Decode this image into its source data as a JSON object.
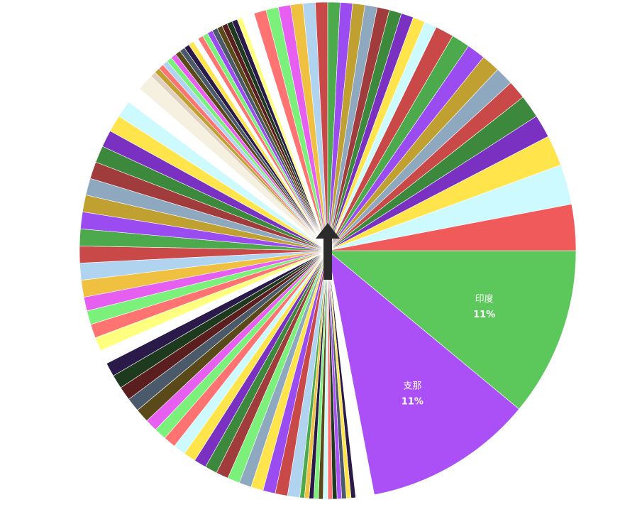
{
  "chart_data": {
    "type": "pie",
    "categories": [
      "印度",
      "支那",
      null,
      null,
      null,
      null,
      null,
      null,
      null,
      null,
      null,
      null,
      null,
      null,
      null,
      null,
      null,
      null,
      null,
      null,
      null,
      null,
      null,
      null,
      null,
      null,
      null,
      null,
      null,
      null,
      null,
      null,
      null,
      null,
      null,
      null,
      null,
      null,
      null,
      null,
      null,
      null,
      null,
      null,
      null,
      null,
      null,
      null,
      null,
      null,
      null,
      null,
      null,
      null,
      null,
      null,
      null,
      null,
      null,
      null,
      null,
      null,
      null,
      null,
      null,
      null,
      null,
      null,
      null,
      null,
      null,
      null,
      null,
      null,
      null,
      null,
      null,
      null,
      null,
      null,
      null,
      null,
      null,
      null,
      null,
      null,
      null,
      null,
      null,
      null,
      null,
      null,
      null,
      null,
      null,
      null,
      null,
      null,
      null,
      null
    ],
    "values": [
      11,
      11,
      1.2,
      0.3,
      0.3,
      0.3,
      0.3,
      0.3,
      0.3,
      0.3,
      0.3,
      0.3,
      0.3,
      0.3,
      0.3,
      0.8,
      0.8,
      0.8,
      0.8,
      0.8,
      0.8,
      0.8,
      0.8,
      0.8,
      0.8,
      0.8,
      0.8,
      0.8,
      0.8,
      0.9,
      0.9,
      0.9,
      0.9,
      0.9,
      0.9,
      0.9,
      0.9,
      0.9,
      0.9,
      1.1,
      1.1,
      1.1,
      1.1,
      1.1,
      1.1,
      1.1,
      1.1,
      1.1,
      1.1,
      1.1,
      1.1,
      1.1,
      1.1,
      0.35,
      0.35,
      0.35,
      0.35,
      0.35,
      0.35,
      0.35,
      0.35,
      0.35,
      0.35,
      0.35,
      0.35,
      0.35,
      0.35,
      0.35,
      0.35,
      0.35,
      0.35,
      0.35,
      0.35,
      0.8,
      0.8,
      0.8,
      0.8,
      0.8,
      0.8,
      0.8,
      0.8,
      0.8,
      0.8,
      0.8,
      0.8,
      0.8,
      0.8,
      0.8,
      0.8,
      1.2,
      1.2,
      1.2,
      1.2,
      1.2,
      1.2,
      1.5,
      1.5,
      2,
      2.6,
      3.0
    ],
    "value_labels": [
      "11%",
      "11%",
      null,
      null,
      null,
      null,
      null,
      null,
      null,
      null,
      null,
      null,
      null,
      null,
      null,
      null,
      null,
      null,
      null,
      null,
      null,
      null,
      null,
      null,
      null,
      null,
      null,
      null,
      null,
      null,
      null,
      null,
      null,
      null,
      null,
      null,
      null,
      null,
      null,
      null,
      null,
      null,
      null,
      null,
      null,
      null,
      null,
      null,
      null,
      null,
      null,
      null,
      null,
      null,
      null,
      null,
      null,
      null,
      null,
      null,
      null,
      null,
      null,
      null,
      null,
      null,
      null,
      null,
      null,
      null,
      null,
      null,
      null,
      null,
      null,
      null,
      null,
      null,
      null,
      null,
      null,
      null,
      null,
      null,
      null,
      null,
      null,
      null,
      null,
      null,
      null,
      null,
      null,
      null,
      null,
      null,
      null,
      null,
      null,
      null
    ],
    "colors": [
      "#5cc85c",
      "#ab4ff7",
      "#ffffff",
      "#2a1a4a",
      "#ffe44c",
      "#4a5a6a",
      "#ab4ff7",
      "#1e3a1e",
      "#ff7373",
      "#ccfaff",
      "#5a4a1a",
      "#7bf07b",
      "#2a1a4a",
      "#f0c040",
      "#4caa4c",
      "#b0d4f0",
      "#c94848",
      "#9a4cf0",
      "#ffe44c",
      "#8ea8c0",
      "#7bf07b",
      "#a03c3c",
      "#3c883c",
      "#7a30c0",
      "#ffe44c",
      "#ccfaff",
      "#ff7373",
      "#7bf07b",
      "#e65ff0",
      "#5a4a1a",
      "#4a5a6a",
      "#5a1e1e",
      "#1e3a1e",
      "#2a1a4a",
      "#ffffff",
      "#ffff80",
      "#ff7373",
      "#7bf07b",
      "#e65ff0",
      "#f0c040",
      "#b0d4f0",
      "#c94848",
      "#4caa4c",
      "#9a4cf0",
      "#c0a030",
      "#8ea8c0",
      "#a03c3c",
      "#3c883c",
      "#7a30c0",
      "#ffe44c",
      "#ccfaff",
      "#ffffff",
      "#f5f0e0",
      "#e0d0c0",
      "#c0a030",
      "#ff7373",
      "#b0d4f0",
      "#7bf07b",
      "#e65ff0",
      "#5a4a1a",
      "#4a5a6a",
      "#2a1a4a",
      "#ffe44c",
      "#ffffff",
      "#ff7373",
      "#7bf07b",
      "#9a4cf0",
      "#4a5a6a",
      "#5a4a1a",
      "#5a1e1e",
      "#1e3a1e",
      "#2a1a4a",
      "#ffff80",
      "#ffffff",
      "#ff7373",
      "#7bf07b",
      "#e65ff0",
      "#f0c040",
      "#b0d4f0",
      "#c94848",
      "#4caa4c",
      "#9a4cf0",
      "#c0a030",
      "#8ea8c0",
      "#a03c3c",
      "#3c883c",
      "#7a30c0",
      "#ffe44c",
      "#ccfaff",
      "#c94848",
      "#4caa4c",
      "#9a4cf0",
      "#c0a030",
      "#8ea8c0",
      "#c94848",
      "#3c883c",
      "#7a30c0",
      "#ffe44c",
      "#ccfaff",
      "#f05a5a"
    ]
  }
}
